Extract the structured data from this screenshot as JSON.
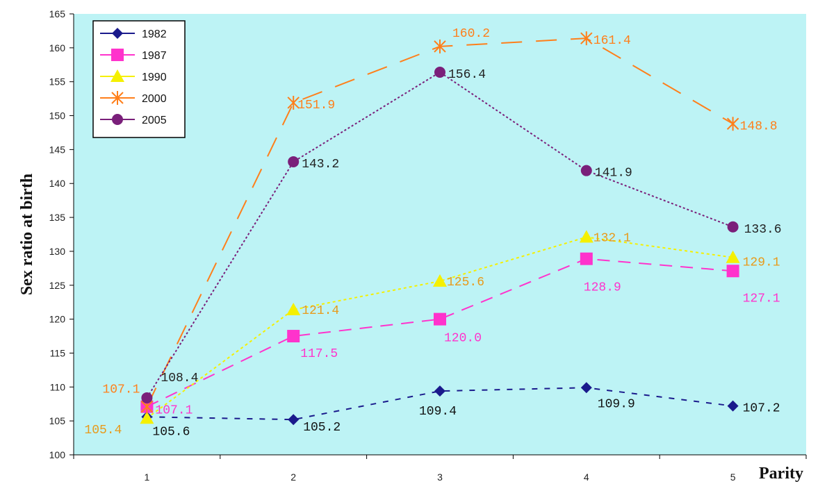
{
  "chart_data": {
    "type": "line",
    "xlabel": "Parity",
    "ylabel": "Sex ratio at birth",
    "categories": [
      "1",
      "2",
      "3",
      "4",
      "5"
    ],
    "ylim": [
      100,
      165
    ],
    "yticks": [
      100,
      105,
      110,
      115,
      120,
      125,
      130,
      135,
      140,
      145,
      150,
      155,
      160,
      165
    ],
    "ytick_labels": [
      "100",
      "105",
      "110",
      "115",
      "120",
      "125",
      "130",
      "135",
      "140",
      "145",
      "150",
      "155",
      "160",
      "165"
    ],
    "grid": false,
    "legend_position": "top-left",
    "background_color": "#bdf3f5",
    "series": [
      {
        "name": "1982",
        "color": "#1a1a8c",
        "marker": "diamond",
        "values": [
          105.6,
          105.2,
          109.4,
          109.9,
          107.2
        ],
        "labels": [
          "105.6",
          "105.2",
          "109.4",
          "109.9",
          "107.2"
        ],
        "label_color": "#111111"
      },
      {
        "name": "1987",
        "color": "#ff33cc",
        "marker": "square",
        "values": [
          107.1,
          117.5,
          120.0,
          128.9,
          127.1
        ],
        "labels": [
          "107.1",
          "117.5",
          "120.0",
          "128.9",
          "127.1"
        ],
        "label_color": "#ff33cc"
      },
      {
        "name": "1990",
        "color": "#f5f000",
        "marker": "triangle",
        "values": [
          105.4,
          121.4,
          125.6,
          132.1,
          129.1
        ],
        "labels": [
          "105.4",
          "121.4",
          "125.6",
          "132.1",
          "129.1"
        ],
        "label_color": "#e89a1a"
      },
      {
        "name": "2000",
        "color": "#ff7f1a",
        "marker": "star",
        "values": [
          107.1,
          151.9,
          160.2,
          161.4,
          148.8
        ],
        "labels": [
          "107.1",
          "151.9",
          "160.2",
          "161.4",
          "148.8"
        ],
        "label_color": "#ff7f1a"
      },
      {
        "name": "2005",
        "color": "#7a1f7a",
        "marker": "circle",
        "values": [
          108.4,
          143.2,
          156.4,
          141.9,
          133.6
        ],
        "labels": [
          "108.4",
          "143.2",
          "156.4",
          "141.9",
          "133.6"
        ],
        "label_color": "#222222"
      }
    ]
  }
}
